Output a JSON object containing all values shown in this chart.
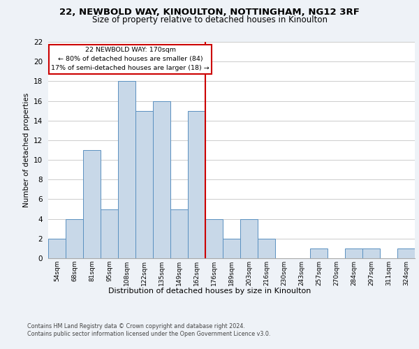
{
  "title1": "22, NEWBOLD WAY, KINOULTON, NOTTINGHAM, NG12 3RF",
  "title2": "Size of property relative to detached houses in Kinoulton",
  "xlabel": "Distribution of detached houses by size in Kinoulton",
  "ylabel": "Number of detached properties",
  "bin_labels": [
    "54sqm",
    "68sqm",
    "81sqm",
    "95sqm",
    "108sqm",
    "122sqm",
    "135sqm",
    "149sqm",
    "162sqm",
    "176sqm",
    "189sqm",
    "203sqm",
    "216sqm",
    "230sqm",
    "243sqm",
    "257sqm",
    "270sqm",
    "284sqm",
    "297sqm",
    "311sqm",
    "324sqm"
  ],
  "bar_values": [
    2,
    4,
    11,
    5,
    18,
    15,
    16,
    5,
    15,
    4,
    2,
    4,
    2,
    0,
    0,
    1,
    0,
    1,
    1,
    0,
    1
  ],
  "bar_color": "#c8d8e8",
  "bar_edge_color": "#5a90c0",
  "vline_x": 8.5,
  "vline_color": "#cc0000",
  "annotation_text": "22 NEWBOLD WAY: 170sqm\n← 80% of detached houses are smaller (84)\n17% of semi-detached houses are larger (18) →",
  "annotation_box_color": "#cc0000",
  "ylim": [
    0,
    22
  ],
  "yticks": [
    0,
    2,
    4,
    6,
    8,
    10,
    12,
    14,
    16,
    18,
    20,
    22
  ],
  "footer1": "Contains HM Land Registry data © Crown copyright and database right 2024.",
  "footer2": "Contains public sector information licensed under the Open Government Licence v3.0.",
  "bg_color": "#eef2f7",
  "plot_bg_color": "#ffffff"
}
